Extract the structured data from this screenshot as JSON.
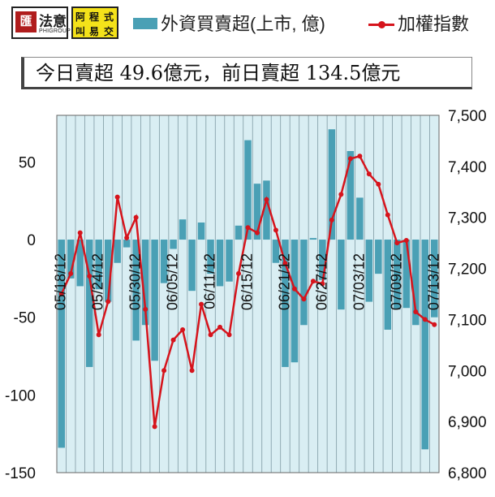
{
  "logo": {
    "mark": "匯",
    "name": "法意",
    "sub": "PHIGROUP",
    "side_chars": [
      "阿",
      "程",
      "式",
      "叫",
      "易",
      "交"
    ]
  },
  "legend": {
    "bar_label": "外資買賣超(上市, 億)",
    "line_label": "加權指數"
  },
  "summary": "今日賣超 49.6億元，前日賣超 134.5億元",
  "colors": {
    "bar": "#4aa0b5",
    "line": "#d6141c",
    "plot_bg": "#d9eef3",
    "grid": "#7f9aa3"
  },
  "chart_data": {
    "type": "bar",
    "categories": [
      "05/18/12",
      "05/21/12",
      "05/22/12",
      "05/23/12",
      "05/24/12",
      "05/25/12",
      "05/28/12",
      "05/29/12",
      "05/30/12",
      "05/31/12",
      "06/01/12",
      "06/04/12",
      "06/05/12",
      "06/06/12",
      "06/07/12",
      "06/08/12",
      "06/11/12",
      "06/12/12",
      "06/13/12",
      "06/14/12",
      "06/15/12",
      "06/18/12",
      "06/19/12",
      "06/20/12",
      "06/21/12",
      "06/22/12",
      "06/25/12",
      "06/26/12",
      "06/27/12",
      "06/28/12",
      "06/29/12",
      "07/02/12",
      "07/03/12",
      "07/04/12",
      "07/05/12",
      "07/06/12",
      "07/09/12",
      "07/10/12",
      "07/11/12",
      "07/12/12",
      "07/13/12"
    ],
    "tick_labels": [
      "05/18/12",
      "05/24/12",
      "05/30/12",
      "06/05/12",
      "06/11/12",
      "06/15/12",
      "06/21/12",
      "06/27/12",
      "07/03/12",
      "07/09/12",
      "07/13/12"
    ],
    "series": [
      {
        "name": "外資買賣超(上市, 億)",
        "type": "bar",
        "axis": "left",
        "values": [
          -134,
          -25,
          -30,
          -82,
          -32,
          -40,
          -15,
          -5,
          -65,
          -55,
          -78,
          -28,
          -6,
          13,
          -33,
          11,
          -22,
          -30,
          -27,
          9,
          64,
          36,
          38,
          -15,
          -82,
          -79,
          -55,
          1,
          -26,
          71,
          -45,
          57,
          27,
          -40,
          -22,
          -58,
          -45,
          -44,
          -55,
          -135,
          -50
        ]
      },
      {
        "name": "加權指數",
        "type": "line",
        "axis": "right",
        "values": [
          7150,
          7190,
          7270,
          7185,
          7070,
          7135,
          7340,
          7260,
          7300,
          7120,
          6890,
          7000,
          7060,
          7080,
          7000,
          7130,
          7070,
          7085,
          7070,
          7190,
          7280,
          7270,
          7335,
          7275,
          7210,
          7160,
          7140,
          7175,
          7170,
          7295,
          7345,
          7415,
          7420,
          7385,
          7365,
          7305,
          7250,
          7255,
          7115,
          7100,
          7090
        ]
      }
    ],
    "left_axis": {
      "ylim": [
        -150,
        80
      ],
      "ticks": [
        -150,
        -100,
        -50,
        0,
        50
      ]
    },
    "right_axis": {
      "ylim": [
        6800,
        7500
      ],
      "ticks": [
        "6,800",
        "6,900",
        "7,000",
        "7,100",
        "7,200",
        "7,300",
        "7,400",
        "7,500"
      ]
    },
    "grid": true
  }
}
